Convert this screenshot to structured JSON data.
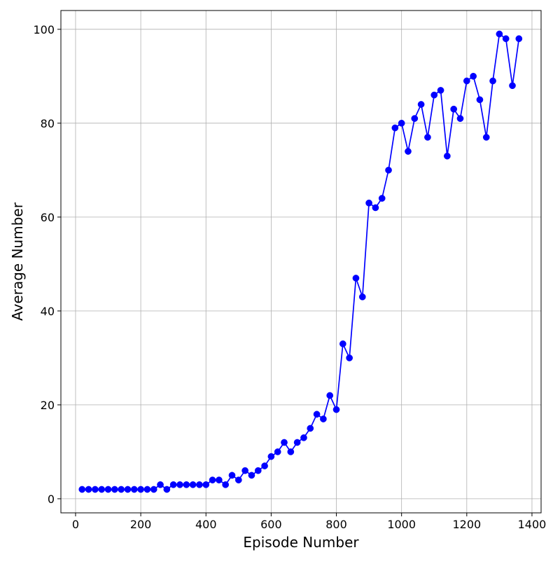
{
  "chart_data": {
    "type": "line",
    "title": "",
    "xlabel": "Episode Number",
    "ylabel": "Average Number",
    "xlim": [
      -45,
      1428
    ],
    "ylim": [
      -3,
      104
    ],
    "xticks": [
      0,
      200,
      400,
      600,
      800,
      1000,
      1200,
      1400
    ],
    "yticks": [
      0,
      20,
      40,
      60,
      80,
      100
    ],
    "grid": true,
    "legend": "none",
    "series": [
      {
        "color": "#0000ff",
        "marker": "circle",
        "x": [
          20,
          40,
          60,
          80,
          100,
          120,
          140,
          160,
          180,
          200,
          220,
          240,
          260,
          280,
          300,
          320,
          340,
          360,
          380,
          400,
          420,
          440,
          460,
          480,
          500,
          520,
          540,
          560,
          580,
          600,
          620,
          640,
          660,
          680,
          700,
          720,
          740,
          760,
          780,
          800,
          820,
          840,
          860,
          880,
          900,
          920,
          940,
          960,
          980,
          1000,
          1020,
          1040,
          1060,
          1080,
          1100,
          1120,
          1140,
          1160,
          1180,
          1200,
          1220,
          1240,
          1260,
          1280,
          1300,
          1320,
          1340,
          1360
        ],
        "y": [
          2,
          2,
          2,
          2,
          2,
          2,
          2,
          2,
          2,
          2,
          2,
          2,
          3,
          2,
          3,
          3,
          3,
          3,
          3,
          3,
          4,
          4,
          3,
          5,
          4,
          6,
          5,
          6,
          7,
          9,
          10,
          12,
          10,
          12,
          13,
          15,
          18,
          17,
          22,
          19,
          33,
          30,
          47,
          43,
          63,
          62,
          64,
          70,
          79,
          80,
          74,
          81,
          84,
          77,
          86,
          87,
          73,
          83,
          81,
          89,
          90,
          85,
          77,
          89,
          99,
          98,
          88,
          98
        ]
      }
    ]
  }
}
